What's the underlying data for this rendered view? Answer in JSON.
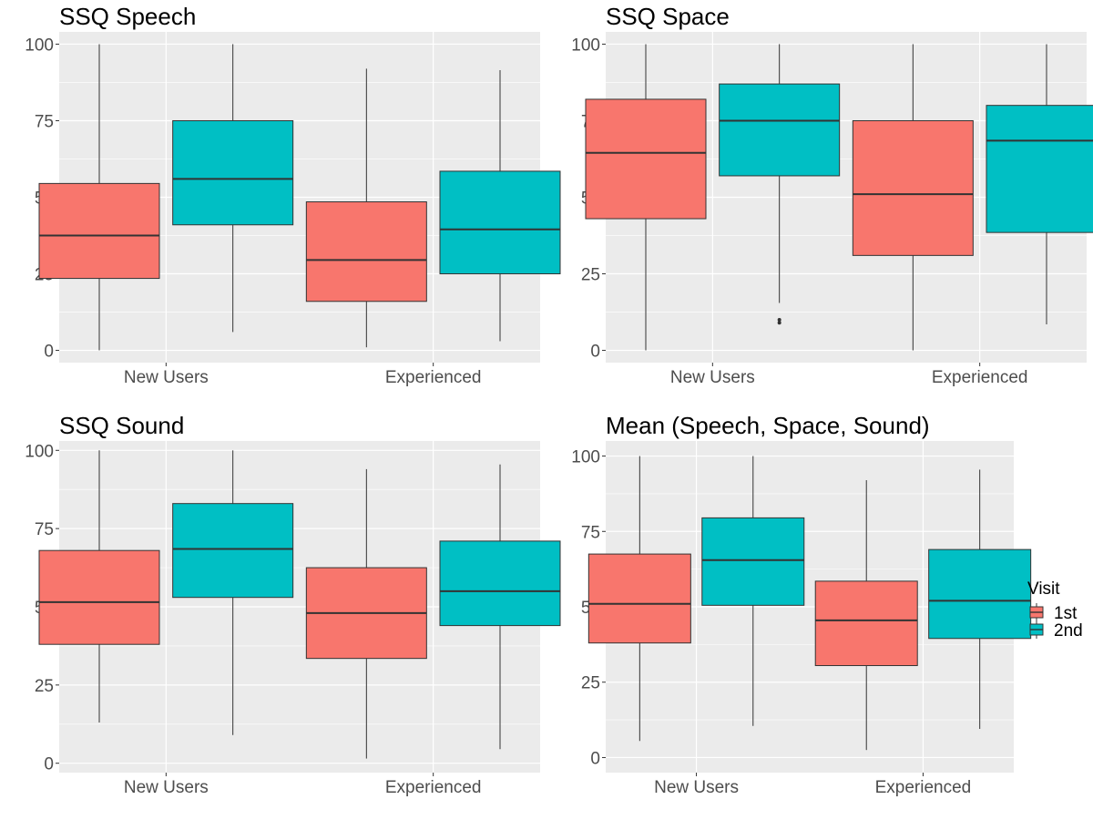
{
  "colors": {
    "first_visit": "#F8766D",
    "second_visit": "#00BFC4",
    "panel_background": "#EBEBEB",
    "gridline": "#FFFFFF",
    "box_outline": "#333333",
    "axis_text": "#4D4D4D"
  },
  "legend": {
    "title": "Visit",
    "entries": [
      {
        "label": "1st",
        "color": "#F8766D"
      },
      {
        "label": "2nd",
        "color": "#00BFC4"
      }
    ],
    "placement": "right"
  },
  "chart_data": [
    {
      "type": "boxplot",
      "title": "SSQ Speech",
      "xlabel": "",
      "ylabel": "",
      "categories": [
        "New Users",
        "Experienced"
      ],
      "ylim": [
        -4,
        104
      ],
      "yticks": [
        0,
        25,
        50,
        75,
        100
      ],
      "grid": true,
      "series": [
        {
          "name": "1st",
          "boxes": [
            {
              "min": 0,
              "q1": 23.5,
              "median": 37.5,
              "q3": 54.5,
              "max": 100,
              "outliers": []
            },
            {
              "min": 1,
              "q1": 16,
              "median": 29.5,
              "q3": 48.5,
              "max": 92,
              "outliers": []
            }
          ]
        },
        {
          "name": "2nd",
          "boxes": [
            {
              "min": 6,
              "q1": 41,
              "median": 56,
              "q3": 75,
              "max": 100,
              "outliers": []
            },
            {
              "min": 3,
              "q1": 25,
              "median": 39.5,
              "q3": 58.5,
              "max": 91.5,
              "outliers": []
            }
          ]
        }
      ]
    },
    {
      "type": "boxplot",
      "title": "SSQ Space",
      "xlabel": "",
      "ylabel": "",
      "categories": [
        "New Users",
        "Experienced"
      ],
      "ylim": [
        -4,
        104
      ],
      "yticks": [
        0,
        25,
        50,
        75,
        100
      ],
      "grid": true,
      "series": [
        {
          "name": "1st",
          "boxes": [
            {
              "min": 0,
              "q1": 43,
              "median": 64.5,
              "q3": 82,
              "max": 100,
              "outliers": []
            },
            {
              "min": 0,
              "q1": 31,
              "median": 51,
              "q3": 75,
              "max": 100,
              "outliers": []
            }
          ]
        },
        {
          "name": "2nd",
          "boxes": [
            {
              "min": 15.5,
              "q1": 57,
              "median": 75,
              "q3": 87,
              "max": 100,
              "outliers": [
                10,
                9
              ]
            },
            {
              "min": 8.5,
              "q1": 38.5,
              "median": 68.5,
              "q3": 80,
              "max": 100,
              "outliers": []
            }
          ]
        }
      ]
    },
    {
      "type": "boxplot",
      "title": "SSQ Sound",
      "xlabel": "",
      "ylabel": "",
      "categories": [
        "New Users",
        "Experienced"
      ],
      "ylim": [
        -3,
        103
      ],
      "yticks": [
        0,
        25,
        50,
        75,
        100
      ],
      "grid": true,
      "series": [
        {
          "name": "1st",
          "boxes": [
            {
              "min": 13,
              "q1": 38,
              "median": 51.5,
              "q3": 68,
              "max": 100,
              "outliers": []
            },
            {
              "min": 1.5,
              "q1": 33.5,
              "median": 48,
              "q3": 62.5,
              "max": 94,
              "outliers": []
            }
          ]
        },
        {
          "name": "2nd",
          "boxes": [
            {
              "min": 9,
              "q1": 53,
              "median": 68.5,
              "q3": 83,
              "max": 100,
              "outliers": []
            },
            {
              "min": 4.5,
              "q1": 44,
              "median": 55,
              "q3": 71,
              "max": 95.5,
              "outliers": []
            }
          ]
        }
      ]
    },
    {
      "type": "boxplot",
      "title": "Mean (Speech, Space, Sound)",
      "xlabel": "",
      "ylabel": "",
      "categories": [
        "New Users",
        "Experienced"
      ],
      "ylim": [
        -5,
        105
      ],
      "yticks": [
        0,
        25,
        50,
        75,
        100
      ],
      "grid": true,
      "series": [
        {
          "name": "1st",
          "boxes": [
            {
              "min": 5.5,
              "q1": 38,
              "median": 51,
              "q3": 67.5,
              "max": 100,
              "outliers": []
            },
            {
              "min": 2.5,
              "q1": 30.5,
              "median": 45.5,
              "q3": 58.5,
              "max": 92,
              "outliers": []
            }
          ]
        },
        {
          "name": "2nd",
          "boxes": [
            {
              "min": 10.5,
              "q1": 50.5,
              "median": 65.5,
              "q3": 79.5,
              "max": 100,
              "outliers": []
            },
            {
              "min": 9.5,
              "q1": 39.5,
              "median": 52,
              "q3": 69,
              "max": 95.5,
              "outliers": []
            }
          ]
        }
      ]
    }
  ]
}
